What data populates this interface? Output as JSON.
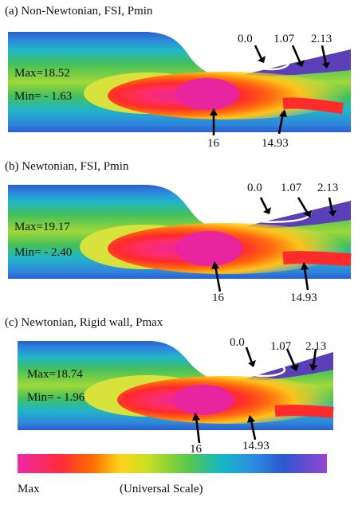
{
  "panels": [
    {
      "title": "(a) Non-Newtonian, FSI, Pmin",
      "max_label": "Max=18.52",
      "min_label": "Min= - 1.63",
      "contour_labels": [
        "0.0",
        "1.07",
        "2.13",
        "16",
        "14.93"
      ]
    },
    {
      "title": "(b) Newtonian, FSI, Pmin",
      "max_label": "Max=19.17",
      "min_label": "Min= - 2.40",
      "contour_labels": [
        "0.0",
        "1.07",
        "2.13",
        "16",
        "14.93"
      ]
    },
    {
      "title": "(c) Newtonian, Rigid wall, Pmax",
      "max_label": "Max=18.74",
      "min_label": "Min= - 1.96",
      "contour_labels": [
        "0.0",
        "1.07",
        "2.13",
        "16",
        "14.93"
      ]
    }
  ],
  "scale": {
    "left_label": "Max",
    "center_label": "(Universal Scale)",
    "colors": [
      "#ee2aa8",
      "#ff2a3a",
      "#ff6a00",
      "#ffd21a",
      "#c8e024",
      "#58c84a",
      "#16b6c6",
      "#2c8ee0",
      "#2a58d0",
      "#9a44d2"
    ]
  }
}
